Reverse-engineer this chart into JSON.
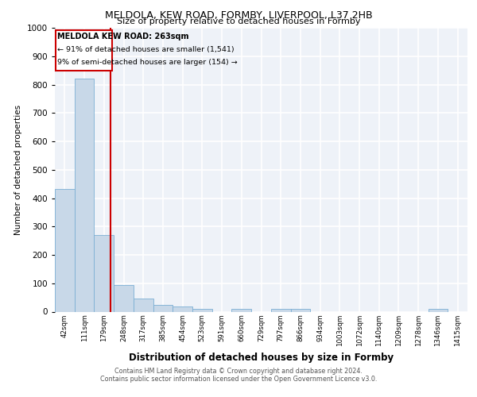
{
  "title1": "MELDOLA, KEW ROAD, FORMBY, LIVERPOOL, L37 2HB",
  "title2": "Size of property relative to detached houses in Formby",
  "xlabel": "Distribution of detached houses by size in Formby",
  "ylabel": "Number of detached properties",
  "footer1": "Contains HM Land Registry data © Crown copyright and database right 2024.",
  "footer2": "Contains public sector information licensed under the Open Government Licence v3.0.",
  "annotation_line1": "MELDOLA KEW ROAD: 263sqm",
  "annotation_line2": "← 91% of detached houses are smaller (1,541)",
  "annotation_line3": "9% of semi-detached houses are larger (154) →",
  "bar_labels": [
    "42sqm",
    "111sqm",
    "179sqm",
    "248sqm",
    "317sqm",
    "385sqm",
    "454sqm",
    "523sqm",
    "591sqm",
    "660sqm",
    "729sqm",
    "797sqm",
    "866sqm",
    "934sqm",
    "1003sqm",
    "1072sqm",
    "1140sqm",
    "1209sqm",
    "1278sqm",
    "1346sqm",
    "1415sqm"
  ],
  "bar_values": [
    432,
    820,
    270,
    95,
    47,
    23,
    17,
    10,
    0,
    10,
    0,
    10,
    10,
    0,
    0,
    0,
    0,
    0,
    0,
    10,
    0
  ],
  "bar_color": "#c8d8e8",
  "bar_edge_color": "#7bafd4",
  "red_line_x": 2.82,
  "ylim": [
    0,
    1000
  ],
  "background_color": "#eef2f8",
  "grid_color": "#ffffff",
  "annotation_box_color": "#ffffff",
  "annotation_box_edge": "#cc0000"
}
